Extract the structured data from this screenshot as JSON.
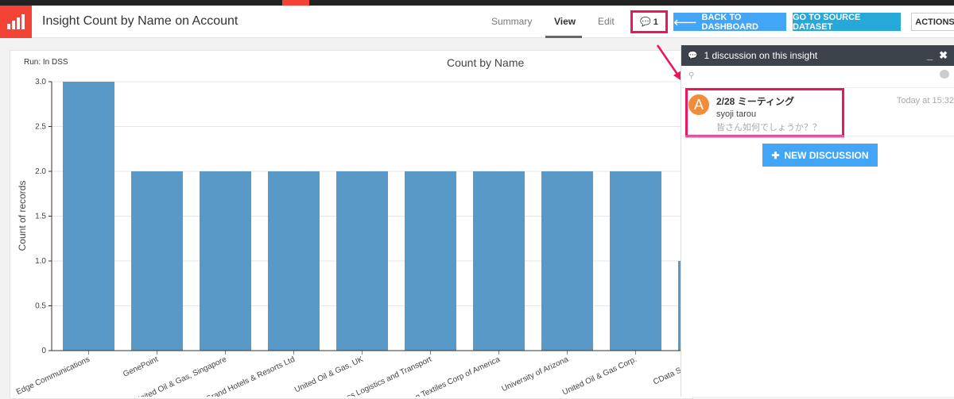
{
  "header": {
    "title": "Insight Count by Name on Account",
    "tabs": [
      "Summary",
      "View",
      "Edit"
    ],
    "active_tab": "View",
    "discussion_count": "1",
    "back_button": "BACK TO DASHBOARD",
    "source_button": "GO TO SOURCE DATASET",
    "actions_button": "ACTIONS"
  },
  "colors": {
    "accent": "#f44336",
    "bar": "#5899c7",
    "back_button": "#42a5f5",
    "source_button": "#26a8d8",
    "highlight": "#f0145a",
    "avatar": "#f08c3a"
  },
  "chart_meta": {
    "run": "Run: In DSS"
  },
  "chart_data": {
    "type": "bar",
    "title": "Count by Name",
    "xlabel": "",
    "ylabel": "Count of records",
    "ylim": [
      0,
      3
    ],
    "yticks": [
      "0",
      "0.5",
      "1.0",
      "1.5",
      "2.0",
      "2.5",
      "3.0"
    ],
    "categories": [
      "Edge Communications",
      "GenePoint",
      "United Oil & Gas, Singapore",
      "Grand Hotels & Resorts Ltd",
      "United Oil & Gas, UK",
      "Express Logistics and Transport",
      "Burlington Textiles Corp of America",
      "University of Arizona",
      "United Oil & Gas Corp.",
      "CData Software"
    ],
    "values": [
      3,
      2,
      2,
      2,
      2,
      2,
      2,
      2,
      2,
      1
    ],
    "grid": true
  },
  "panel": {
    "title": "1 discussion on this insight",
    "discussion": {
      "avatar": "A",
      "title": "2/28 ミーティング",
      "author": "syoji tarou",
      "preview": "皆さん如何でしょうか？？",
      "time": "Today at 15:32"
    },
    "new_button": "NEW DISCUSSION"
  }
}
